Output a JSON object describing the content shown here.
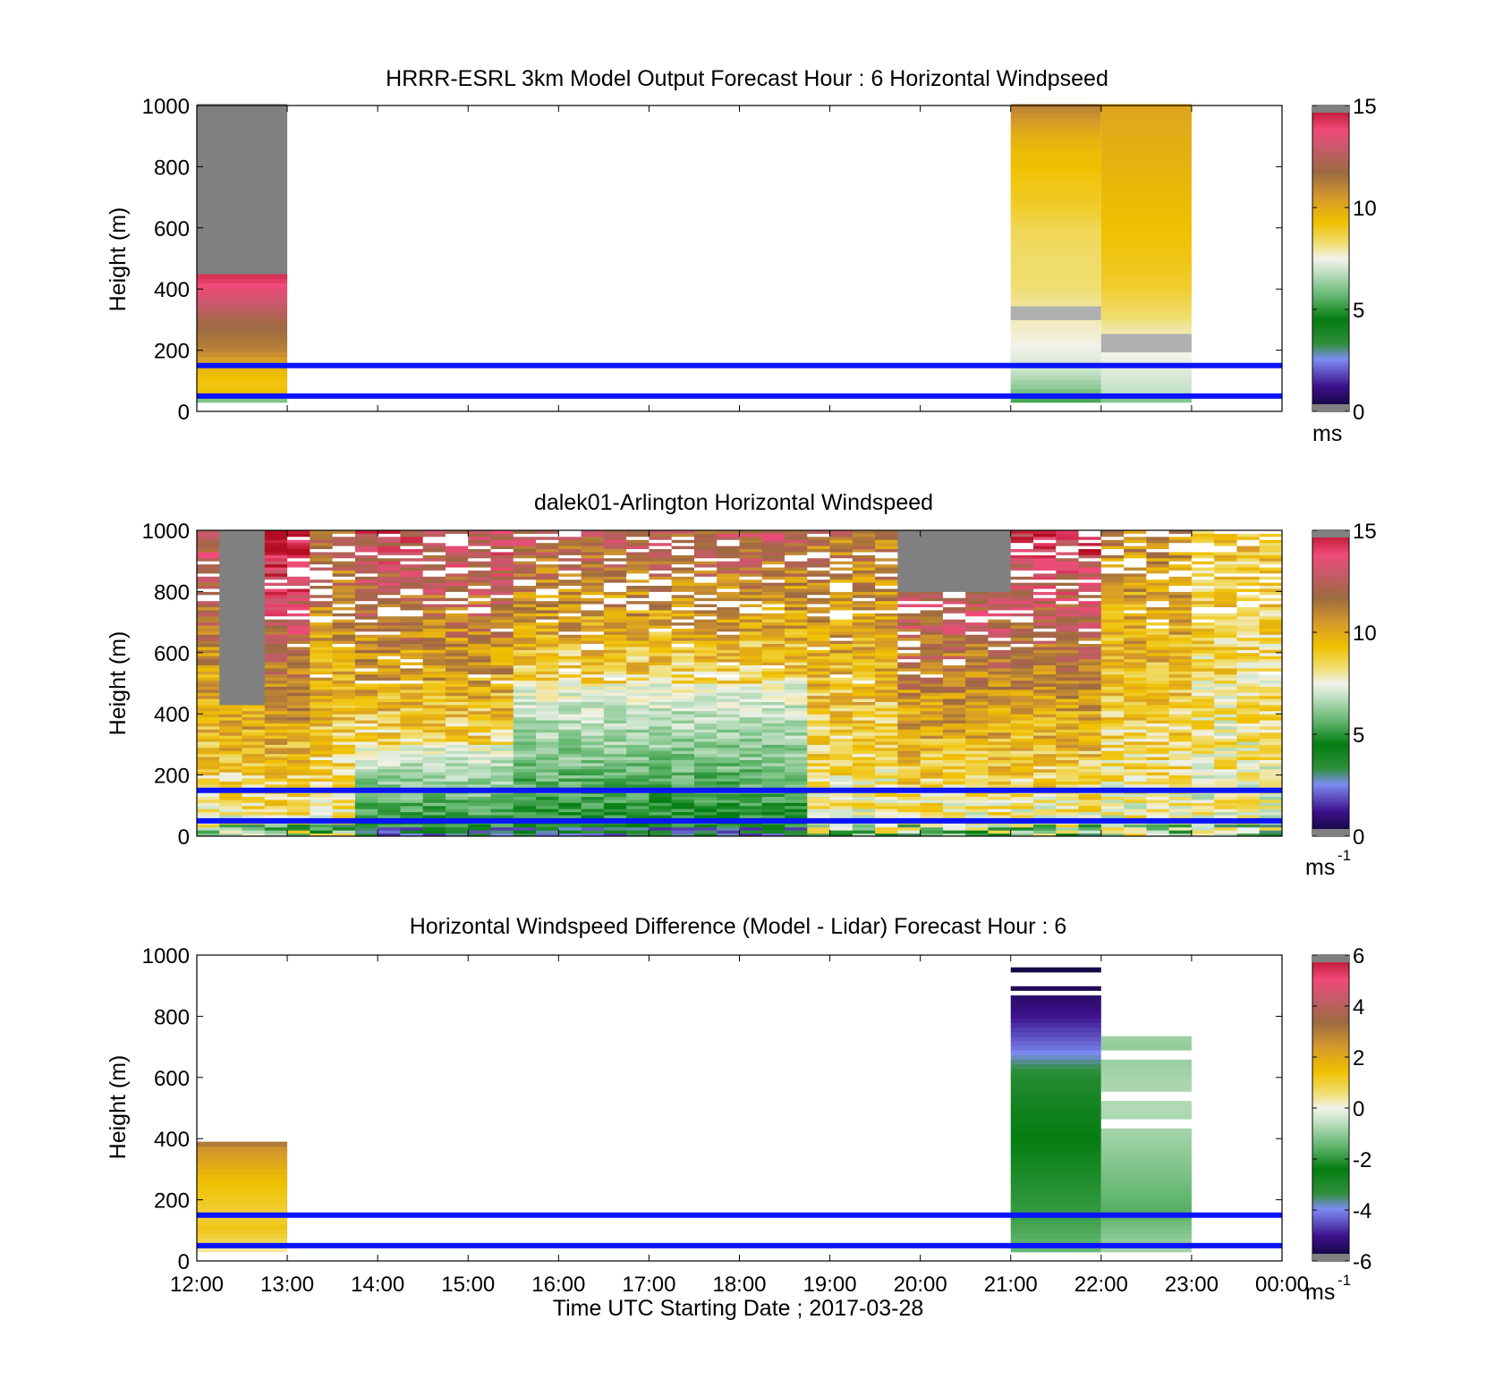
{
  "chart_data": [
    {
      "type": "heatmap",
      "title": "HRRR-ESRL 3km Model Output   Forecast Hour : 6 Horizontal Windpseed",
      "ylabel": "Height (m)",
      "xlabel": "",
      "ylim": [
        0,
        1000
      ],
      "yticks": [
        "0",
        "200",
        "400",
        "600",
        "800",
        "1000"
      ],
      "xlim": [
        "12:00",
        "00:00"
      ],
      "colorbar": {
        "ticks": [
          "0",
          "5",
          "10",
          "15"
        ],
        "range": [
          0,
          15
        ],
        "unit": "ms",
        "unit_sup": ""
      },
      "reference_lines_m": [
        50,
        150
      ],
      "columns": [
        {
          "t0": 12,
          "t1": 13,
          "top": 1000,
          "missing_above": 450,
          "profile": [
            [
              30,
              5.5
            ],
            [
              45,
              6.5
            ],
            [
              60,
              9.3
            ],
            [
              90,
              9.1
            ],
            [
              120,
              9.4
            ],
            [
              150,
              9.8
            ],
            [
              180,
              10.6
            ],
            [
              210,
              11.2
            ],
            [
              240,
              11.4
            ],
            [
              270,
              11.7
            ],
            [
              300,
              12.0
            ],
            [
              330,
              12.6
            ],
            [
              360,
              13.0
            ],
            [
              400,
              13.6
            ],
            [
              450,
              14.4
            ]
          ]
        },
        {
          "t0": 21,
          "t1": 22,
          "top": 1000,
          "missing_bands": [
            [
              300,
              350
            ]
          ],
          "profile": [
            [
              30,
              5.2
            ],
            [
              50,
              5.6
            ],
            [
              80,
              6.2
            ],
            [
              110,
              6.6
            ],
            [
              140,
              7.0
            ],
            [
              170,
              7.2
            ],
            [
              200,
              7.4
            ],
            [
              240,
              7.6
            ],
            [
              300,
              7.8
            ],
            [
              350,
              8.0
            ],
            [
              400,
              8.2
            ],
            [
              450,
              8.3
            ],
            [
              500,
              8.3
            ],
            [
              550,
              8.4
            ],
            [
              600,
              8.5
            ],
            [
              650,
              8.8
            ],
            [
              700,
              9.0
            ],
            [
              750,
              9.1
            ],
            [
              800,
              9.3
            ],
            [
              850,
              9.5
            ],
            [
              900,
              9.8
            ],
            [
              1000,
              11.1
            ]
          ]
        },
        {
          "t0": 22,
          "t1": 23,
          "top": 1000,
          "missing_bands": [
            [
              200,
              250
            ]
          ],
          "profile": [
            [
              30,
              5.8
            ],
            [
              60,
              6.8
            ],
            [
              90,
              7.0
            ],
            [
              130,
              7.2
            ],
            [
              170,
              7.4
            ],
            [
              200,
              7.6
            ],
            [
              250,
              7.8
            ],
            [
              280,
              8.0
            ],
            [
              300,
              8.2
            ],
            [
              350,
              8.5
            ],
            [
              400,
              8.8
            ],
            [
              450,
              9.0
            ],
            [
              500,
              9.1
            ],
            [
              550,
              9.2
            ],
            [
              600,
              9.3
            ],
            [
              700,
              9.5
            ],
            [
              800,
              9.7
            ],
            [
              900,
              9.9
            ],
            [
              1000,
              10.1
            ]
          ]
        }
      ]
    },
    {
      "type": "heatmap",
      "title": "dalek01-Arlington  Horizontal Windspeed",
      "ylabel": "Height (m)",
      "xlabel": "",
      "ylim": [
        0,
        1000
      ],
      "yticks": [
        "0",
        "200",
        "400",
        "600",
        "800",
        "1000"
      ],
      "xlim": [
        "12:00",
        "00:00"
      ],
      "colorbar": {
        "ticks": [
          "0",
          "5",
          "10",
          "15"
        ],
        "range": [
          0,
          15
        ],
        "unit": "ms",
        "unit_sup": "-1"
      },
      "reference_lines_m": [
        50,
        150
      ],
      "column_step_hours": 0.25,
      "regime_by_hour": [
        [
          12.0,
          "brown",
          11.8
        ],
        [
          12.25,
          "gray_top",
          12.5
        ],
        [
          12.75,
          "pink",
          13.2
        ],
        [
          13.25,
          "mixed",
          11.0
        ],
        [
          13.75,
          "green_low",
          10.0
        ],
        [
          15.5,
          "green",
          9.0
        ],
        [
          18.75,
          "orange",
          10.5
        ],
        [
          19.75,
          "pink_gray",
          12.8
        ],
        [
          21.0,
          "pink",
          12.6
        ],
        [
          22.0,
          "orange",
          10.2
        ],
        [
          23.0,
          "yellow",
          8.8
        ]
      ]
    },
    {
      "type": "heatmap",
      "title": "Horizontal Windspeed Difference (Model - Lidar) Forecast Hour : 6",
      "ylabel": "Height (m)",
      "xlabel": "Time UTC  Starting Date ; 2017-03-28",
      "ylim": [
        0,
        1000
      ],
      "yticks": [
        "0",
        "200",
        "400",
        "600",
        "800",
        "1000"
      ],
      "xlim": [
        "12:00",
        "00:00"
      ],
      "xticks": [
        "12:00",
        "13:00",
        "14:00",
        "15:00",
        "16:00",
        "17:00",
        "18:00",
        "19:00",
        "20:00",
        "21:00",
        "22:00",
        "23:00",
        "00:00"
      ],
      "colorbar": {
        "ticks": [
          "-6",
          "-4",
          "-2",
          "0",
          "2",
          "4",
          "6"
        ],
        "range": [
          -6,
          6
        ],
        "unit": "ms",
        "unit_sup": "-1"
      },
      "reference_lines_m": [
        50,
        150
      ],
      "columns": [
        {
          "t0": 12,
          "t1": 13,
          "top": 380,
          "profile": [
            [
              30,
              0.2
            ],
            [
              50,
              0.6
            ],
            [
              80,
              1.0
            ],
            [
              110,
              1.3
            ],
            [
              150,
              1.0
            ],
            [
              200,
              1.2
            ],
            [
              250,
              1.4
            ],
            [
              300,
              1.8
            ],
            [
              340,
              2.2
            ],
            [
              370,
              2.5
            ],
            [
              380,
              3.0
            ]
          ]
        },
        {
          "t0": 21,
          "t1": 22,
          "top": 960,
          "missing_bands": [
            [
              900,
              940
            ],
            [
              870,
              885
            ]
          ],
          "profile": [
            [
              30,
              -1.4
            ],
            [
              80,
              -1.6
            ],
            [
              150,
              -1.9
            ],
            [
              200,
              -2.0
            ],
            [
              300,
              -2.2
            ],
            [
              400,
              -2.4
            ],
            [
              500,
              -2.7
            ],
            [
              600,
              -3.1
            ],
            [
              650,
              -3.6
            ],
            [
              700,
              -4.2
            ],
            [
              750,
              -4.6
            ],
            [
              800,
              -5.0
            ],
            [
              850,
              -5.3
            ],
            [
              900,
              -5.6
            ],
            [
              960,
              -5.8
            ]
          ]
        },
        {
          "t0": 22,
          "t1": 23,
          "top": 730,
          "missing_bands": [
            [
              660,
              690
            ],
            [
              520,
              560
            ],
            [
              430,
              470
            ]
          ],
          "profile": [
            [
              30,
              -0.8
            ],
            [
              100,
              -1.2
            ],
            [
              160,
              -1.6
            ],
            [
              200,
              -1.5
            ],
            [
              300,
              -1.2
            ],
            [
              400,
              -0.9
            ],
            [
              500,
              -0.7
            ],
            [
              600,
              -0.8
            ],
            [
              700,
              -1.0
            ],
            [
              730,
              -0.9
            ]
          ]
        }
      ]
    }
  ]
}
